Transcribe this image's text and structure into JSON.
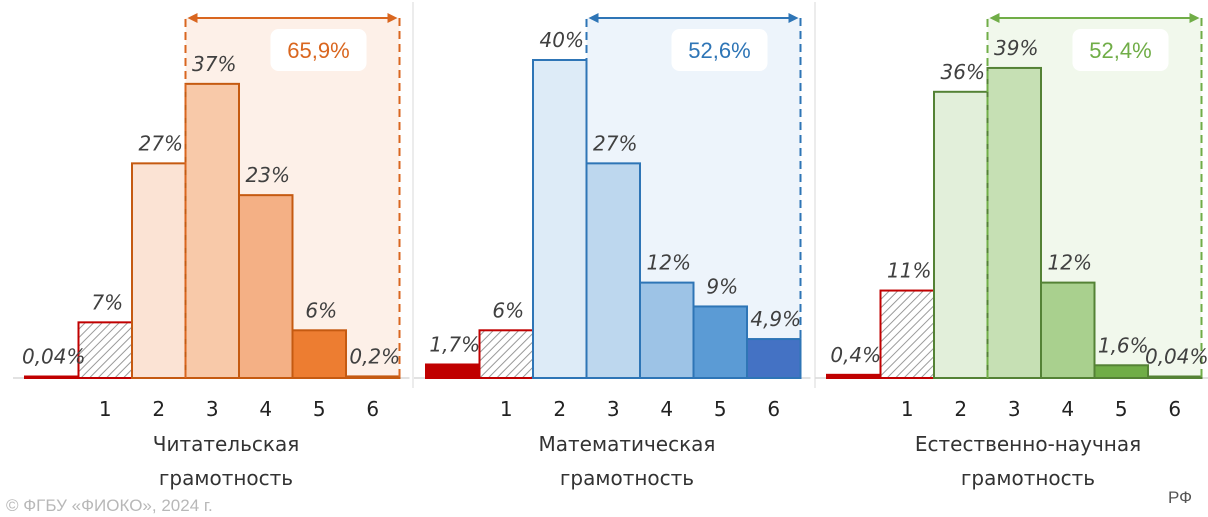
{
  "chart_data": [
    {
      "type": "bar",
      "title": "Читательская грамотность",
      "title_lines": [
        "Читательская",
        "грамотность"
      ],
      "categories": [
        "",
        "1",
        "2",
        "3",
        "4",
        "5",
        "6"
      ],
      "values": [
        0.04,
        7,
        27,
        37,
        23,
        6,
        0.2
      ],
      "value_labels": [
        "0,04%",
        "7%",
        "27%",
        "37%",
        "23%",
        "6%",
        "0,2%"
      ],
      "bracket_from": 3,
      "bracket_total_label": "65,9%",
      "accent": "#d9661f",
      "ylim": [
        0,
        40
      ],
      "fills": [
        "#ffffff",
        "hatch",
        "#fbe3d4",
        "#f8c9a9",
        "#f4b085",
        "#ed7d31",
        "#ffffff"
      ],
      "strokes": [
        "#c00000",
        "#c00000",
        "#c55a11",
        "#c55a11",
        "#c55a11",
        "#c55a11",
        "#c55a11"
      ],
      "region_fill": "#fdf0e8"
    },
    {
      "type": "bar",
      "title": "Математическая грамотность",
      "title_lines": [
        "Математическая",
        "грамотность"
      ],
      "categories": [
        "",
        "1",
        "2",
        "3",
        "4",
        "5",
        "6"
      ],
      "values": [
        1.7,
        6,
        40,
        27,
        12,
        9,
        4.9
      ],
      "value_labels": [
        "1,7%",
        "6%",
        "40%",
        "27%",
        "12%",
        "9%",
        "4,9%"
      ],
      "bracket_from": 3,
      "bracket_total_label": "52,6%",
      "accent": "#2e75b6",
      "ylim": [
        0,
        40
      ],
      "fills": [
        "#c00000",
        "hatch",
        "#ddebf7",
        "#bdd7ee",
        "#9dc3e6",
        "#5b9bd5",
        "#4472c4"
      ],
      "strokes": [
        "#c00000",
        "#c00000",
        "#2e75b6",
        "#2e75b6",
        "#2e75b6",
        "#2e75b6",
        "#2e75b6"
      ],
      "region_fill": "#edf4fb"
    },
    {
      "type": "bar",
      "title": "Естественно-научная грамотность",
      "title_lines": [
        "Естественно-научная",
        "грамотность"
      ],
      "categories": [
        "",
        "1",
        "2",
        "3",
        "4",
        "5",
        "6"
      ],
      "values": [
        0.4,
        11,
        36,
        39,
        12,
        1.6,
        0.04
      ],
      "value_labels": [
        "0,4%",
        "11%",
        "36%",
        "39%",
        "12%",
        "1,6%",
        "0,04%"
      ],
      "bracket_from": 3,
      "bracket_total_label": "52,4%",
      "accent": "#70ad47",
      "ylim": [
        0,
        40
      ],
      "fills": [
        "#c00000",
        "hatch",
        "#e2efda",
        "#c6e0b4",
        "#a9d08e",
        "#70ad47",
        "#ffffff"
      ],
      "strokes": [
        "#c00000",
        "#c00000",
        "#548235",
        "#548235",
        "#548235",
        "#548235",
        "#548235"
      ],
      "region_fill": "#f1f8ec"
    }
  ],
  "footer": {
    "copyright": "© ФГБУ «ФИОКО», 2024 г.",
    "region": "РФ"
  }
}
